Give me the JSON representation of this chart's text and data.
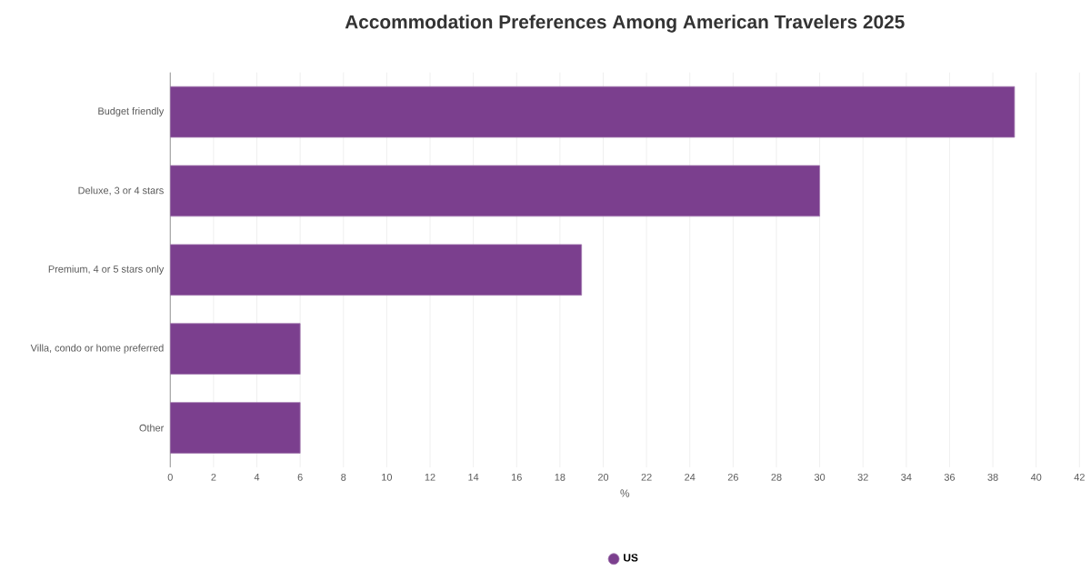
{
  "chart_data": {
    "type": "bar",
    "orientation": "horizontal",
    "title": "Accommodation Preferences Among American Travelers 2025",
    "xlabel": "%",
    "categories": [
      "Budget friendly",
      "Deluxe, 3 or 4 stars",
      "Premium, 4 or 5 stars only",
      "Villa, condo or home preferred",
      "Other"
    ],
    "series": [
      {
        "name": "US",
        "color": "#7b3f8e",
        "values": [
          39,
          30,
          19,
          6,
          6
        ]
      }
    ],
    "xlim": [
      0,
      42
    ],
    "xticks": [
      0,
      2,
      4,
      6,
      8,
      10,
      12,
      14,
      16,
      18,
      20,
      22,
      24,
      26,
      28,
      30,
      32,
      34,
      36,
      38,
      40,
      42
    ],
    "grid": "x",
    "legend": "bottom"
  }
}
